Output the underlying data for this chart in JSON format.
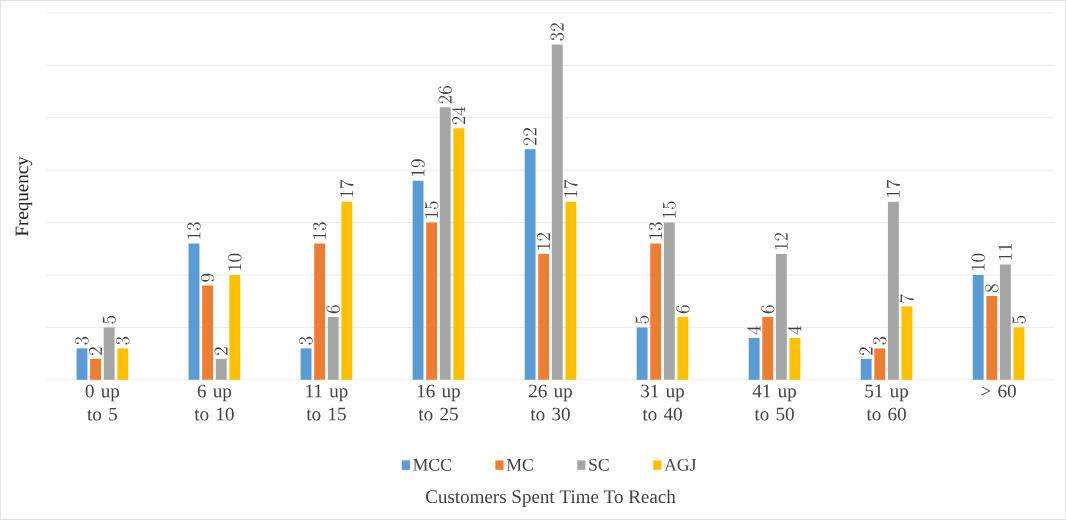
{
  "chart_data": {
    "type": "bar",
    "xlabel": "Customers Spent Time To Reach",
    "ylabel": "Frequency",
    "categories": [
      "0 up to 5",
      "6 up to 10",
      "11 up to 15",
      "16 up to 25",
      "26 up to 30",
      "31 up to 40",
      "41 up to 50",
      "51 up to 60",
      "> 60"
    ],
    "series": [
      {
        "name": "MCC",
        "color": "#5b9bd5",
        "values": [
          3,
          13,
          3,
          19,
          22,
          5,
          4,
          2,
          10
        ]
      },
      {
        "name": "MC",
        "color": "#ed7d31",
        "values": [
          2,
          9,
          13,
          15,
          12,
          13,
          6,
          3,
          8
        ]
      },
      {
        "name": "SC",
        "color": "#a5a5a5",
        "values": [
          5,
          2,
          6,
          26,
          32,
          15,
          12,
          17,
          11
        ]
      },
      {
        "name": "AGJ",
        "color": "#ffc000",
        "values": [
          3,
          10,
          17,
          24,
          17,
          6,
          4,
          7,
          5
        ]
      }
    ],
    "ylim": [
      0,
      35
    ],
    "yticks": [
      {
        "value": 0,
        "label": null
      },
      {
        "value": 5,
        "label": null
      },
      {
        "value": 10,
        "label": null
      },
      {
        "value": 15,
        "label": null
      },
      {
        "value": 20,
        "label": null
      },
      {
        "value": 25,
        "label": null
      },
      {
        "value": 30,
        "label": null
      },
      {
        "value": 35,
        "label": null
      }
    ],
    "tick_labels": "x",
    "grid": "y",
    "legend": "bottom",
    "data_labels": true
  }
}
